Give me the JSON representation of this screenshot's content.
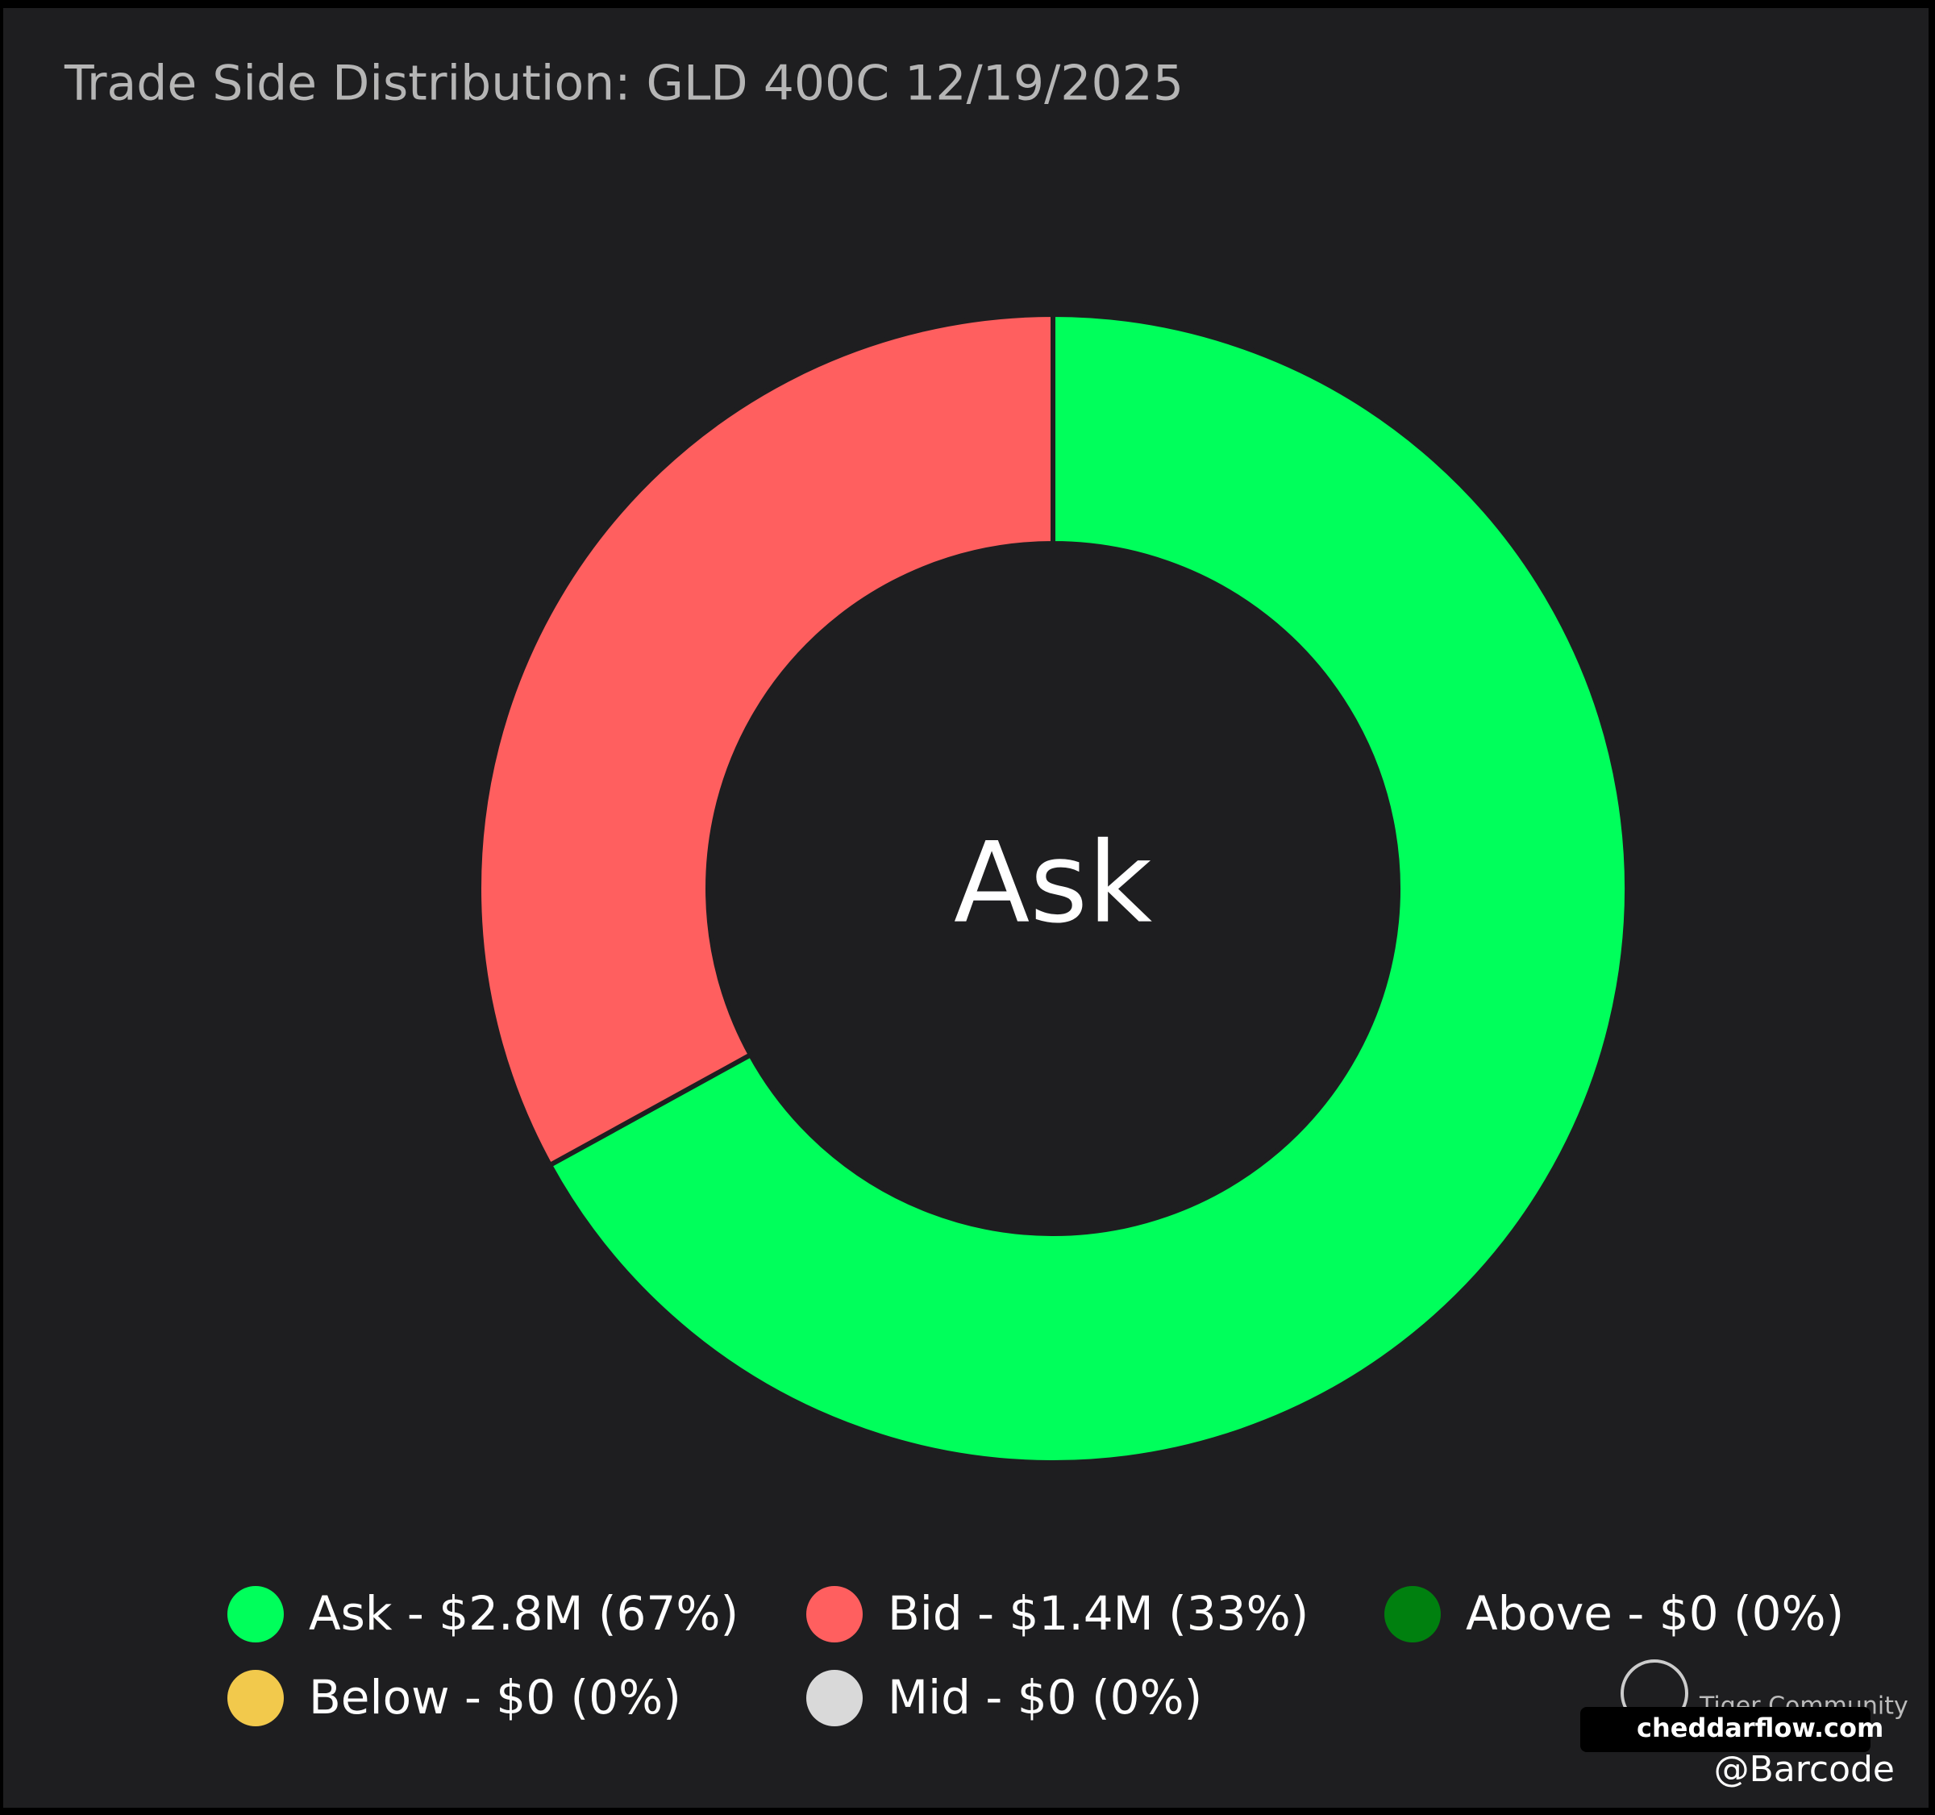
{
  "chart_data": {
    "type": "donut",
    "title": "Trade Side Distribution: GLD 400C 12/19/2025",
    "center_label": "Ask",
    "values": [
      67,
      33,
      0,
      0,
      0
    ],
    "labels": [
      "Ask - $2.8M (67%)",
      "Bid - $1.4M (33%)",
      "Above - $0 (0%)",
      "Below - $0 (0%)",
      "Mid - $0 (0%)"
    ],
    "colors": [
      "#00ff5b",
      "#ff5f5f",
      "#00800f",
      "#f2c94c",
      "#d9d9d9"
    ]
  },
  "watermarks": {
    "community": "Tiger Community",
    "site": "cheddarflow.com",
    "handle": "@Barcode"
  }
}
